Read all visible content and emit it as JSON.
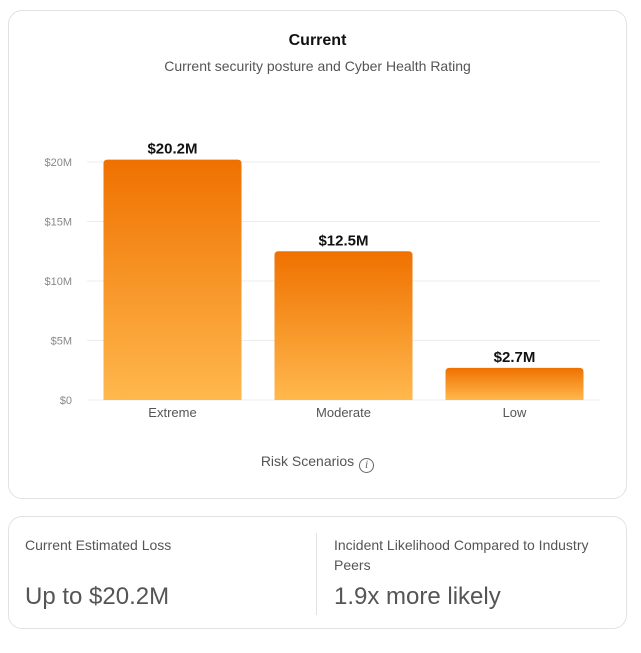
{
  "chart_data": {
    "type": "bar",
    "title": "Current",
    "subtitle": "Current security posture and Cyber Health Rating",
    "xlabel": "Risk Scenarios",
    "ylabel": "",
    "categories": [
      "Extreme",
      "Moderate",
      "Low"
    ],
    "values": [
      20.2,
      12.5,
      2.7
    ],
    "value_labels": [
      "$20.2M",
      "$12.5M",
      "$2.7M"
    ],
    "yticks": [
      0,
      5,
      10,
      15,
      20
    ],
    "ytick_labels": [
      "$0",
      "$5M",
      "$10M",
      "$15M",
      "$20M"
    ],
    "ylim": [
      0,
      20
    ],
    "grid": true,
    "bar_gradient": [
      "#ef7100",
      "#ffb84d"
    ]
  },
  "stats": {
    "loss_label": "Current Estimated Loss",
    "loss_value": "Up to $20.2M",
    "likelihood_label": "Incident Likelihood Compared to Industry Peers",
    "likelihood_value": "1.9x more likely"
  },
  "icons": {
    "xlabel_info": "info-icon"
  }
}
